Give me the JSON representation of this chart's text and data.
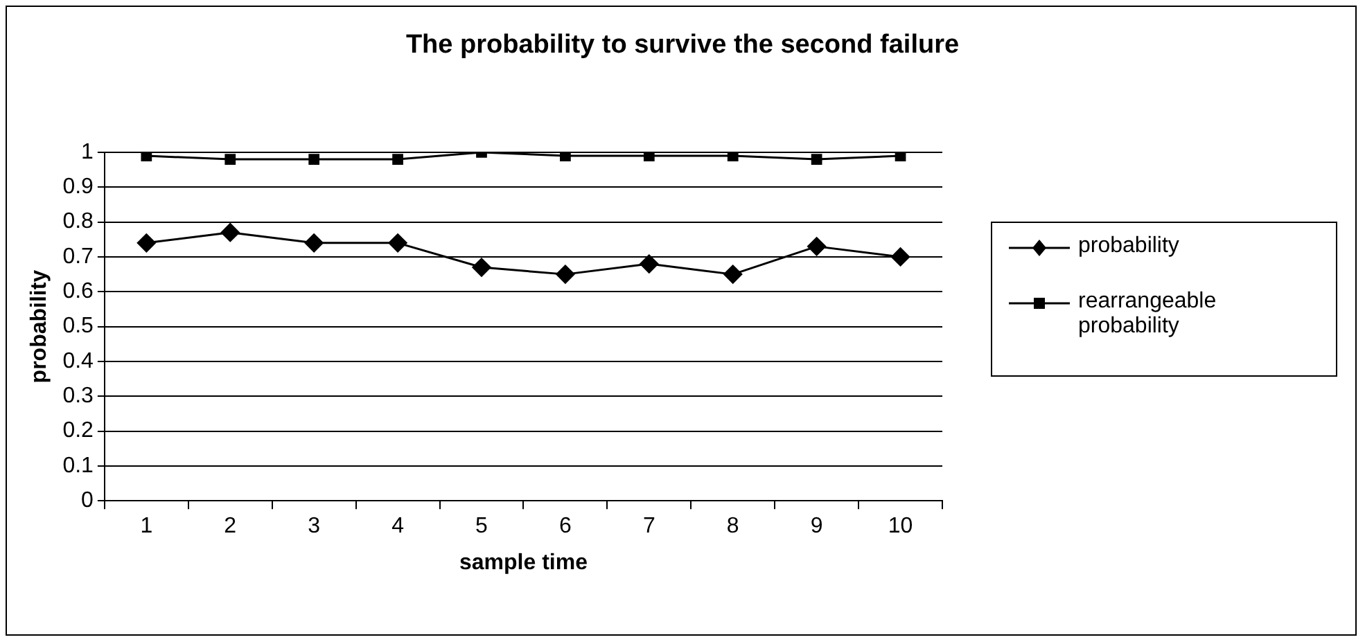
{
  "chart_data": {
    "type": "line",
    "title": "The probability to survive the second failure",
    "xlabel": "sample time",
    "ylabel": "probability",
    "categories": [
      "1",
      "2",
      "3",
      "4",
      "5",
      "6",
      "7",
      "8",
      "9",
      "10"
    ],
    "series": [
      {
        "name": "probability",
        "color": "#000000",
        "marker": "diamond",
        "values": [
          0.74,
          0.77,
          0.74,
          0.74,
          0.67,
          0.65,
          0.68,
          0.65,
          0.73,
          0.7
        ]
      },
      {
        "name": "rearrangeable probability",
        "color": "#000000",
        "marker": "square",
        "values": [
          0.99,
          0.98,
          0.98,
          0.98,
          1,
          0.99,
          0.99,
          0.99,
          0.98,
          0.99
        ]
      }
    ],
    "ylim": [
      0,
      1
    ],
    "yticks": [
      0,
      0.1,
      0.2,
      0.3,
      0.4,
      0.5,
      0.6,
      0.7,
      0.8,
      0.9,
      1
    ],
    "grid": "y",
    "legend": "right",
    "line_style": "solid"
  }
}
